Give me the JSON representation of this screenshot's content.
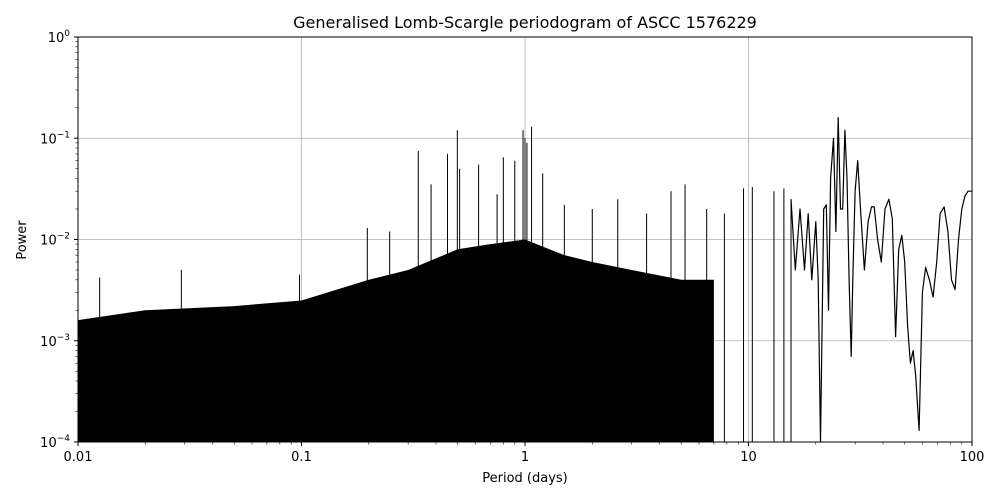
{
  "chart_data": {
    "type": "line",
    "title": "Generalised Lomb-Scargle periodogram of ASCC 1576229",
    "xlabel": "Period (days)",
    "ylabel": "Power",
    "xscale": "log",
    "yscale": "log",
    "xlim": [
      0.01,
      100
    ],
    "ylim": [
      0.0001,
      1
    ],
    "grid": true,
    "color": "#000000",
    "x_ticks": [
      "0.01",
      "0.1",
      "1",
      "10",
      "100"
    ],
    "y_ticks": [
      {
        "base": "10",
        "exp": "0"
      },
      {
        "base": "10",
        "exp": "−1"
      },
      {
        "base": "10",
        "exp": "−2"
      },
      {
        "base": "10",
        "exp": "−3"
      },
      {
        "base": "10",
        "exp": "−4"
      }
    ],
    "noise_envelope": {
      "period": [
        0.01,
        0.02,
        0.05,
        0.1,
        0.2,
        0.3,
        0.5,
        0.7,
        1.0,
        1.5,
        2.0,
        3.0,
        5.0,
        7.0
      ],
      "power": [
        0.0016,
        0.002,
        0.0022,
        0.0025,
        0.004,
        0.005,
        0.008,
        0.009,
        0.01,
        0.007,
        0.006,
        0.005,
        0.004,
        0.004
      ]
    },
    "peaks": {
      "period": [
        0.0125,
        0.029,
        0.098,
        0.197,
        0.248,
        0.333,
        0.38,
        0.45,
        0.498,
        0.51,
        0.62,
        0.75,
        0.8,
        0.9,
        0.98,
        1.0,
        1.02,
        1.07,
        1.2,
        1.5,
        2.0,
        2.6,
        3.5,
        4.5,
        5.2,
        6.5,
        7.8,
        9.5,
        10.4,
        13.0,
        14.4,
        15.5
      ],
      "power": [
        0.0042,
        0.005,
        0.0045,
        0.013,
        0.012,
        0.075,
        0.035,
        0.07,
        0.12,
        0.05,
        0.055,
        0.028,
        0.065,
        0.06,
        0.12,
        0.1,
        0.09,
        0.13,
        0.045,
        0.022,
        0.02,
        0.025,
        0.018,
        0.03,
        0.035,
        0.02,
        0.018,
        0.032,
        0.033,
        0.03,
        0.032,
        0.025
      ]
    },
    "series": [
      {
        "period": [
          15.5,
          16.2,
          17.0,
          17.8,
          18.5,
          19.2,
          20.0,
          20.5,
          21.0,
          21.7,
          22.3,
          22.8,
          23.3,
          24.0,
          24.6,
          25.2,
          25.8,
          26.4,
          27.0,
          27.6,
          28.2,
          28.8,
          29.3,
          30.0,
          30.8,
          31.7,
          33.0,
          34.3,
          35.5,
          36.5,
          37.8,
          39.3,
          40.8,
          42.5,
          44.0,
          45.5,
          47.0,
          48.5,
          50.0,
          51.5,
          53.0,
          54.5,
          56.0,
          58.0,
          60.0,
          62.0,
          64.5,
          67.0,
          69.5,
          72.0,
          75.0,
          78.0,
          81.0,
          84.0,
          87.0,
          90.0,
          93.0,
          96.0,
          100.0
        ],
        "power": [
          0.025,
          0.005,
          0.02,
          0.005,
          0.018,
          0.004,
          0.015,
          0.004,
          0.0001,
          0.02,
          0.022,
          0.002,
          0.04,
          0.1,
          0.012,
          0.16,
          0.02,
          0.02,
          0.12,
          0.04,
          0.004,
          0.0007,
          0.004,
          0.03,
          0.06,
          0.02,
          0.005,
          0.015,
          0.021,
          0.021,
          0.01,
          0.006,
          0.02,
          0.025,
          0.016,
          0.0011,
          0.008,
          0.011,
          0.006,
          0.0014,
          0.0006,
          0.0008,
          0.00045,
          0.00013,
          0.003,
          0.0053,
          0.004,
          0.0027,
          0.006,
          0.018,
          0.021,
          0.012,
          0.004,
          0.0032,
          0.01,
          0.02,
          0.027,
          0.03,
          0.03
        ]
      }
    ]
  }
}
